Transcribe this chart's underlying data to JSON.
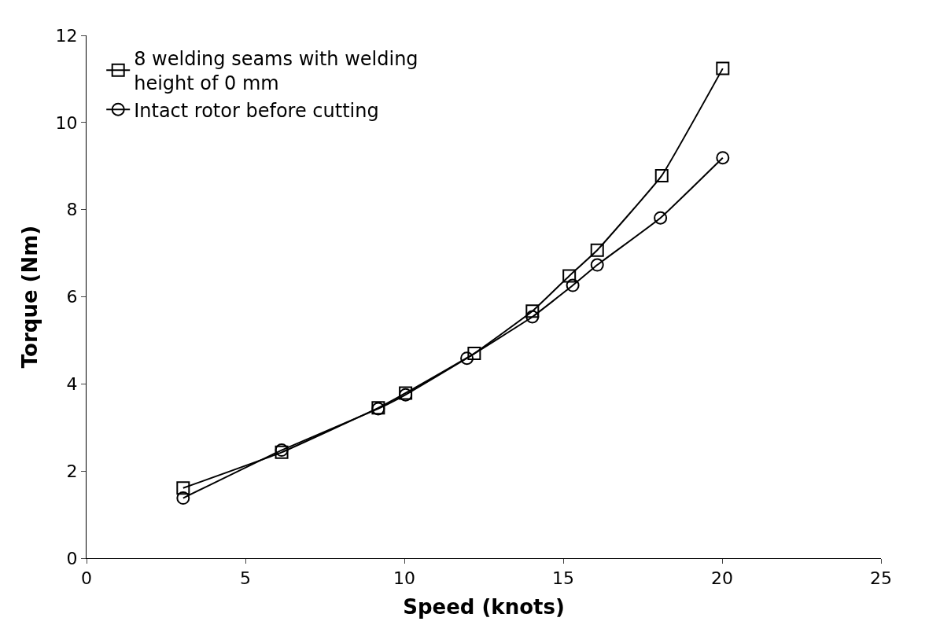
{
  "chart_data": {
    "type": "line",
    "xlabel": "Speed (knots)",
    "ylabel": "Torque (Nm)",
    "xlim": [
      0,
      25
    ],
    "xticks": [
      0,
      5,
      10,
      15,
      20,
      25
    ],
    "ylim": [
      0,
      12
    ],
    "yticks": [
      0,
      2,
      4,
      6,
      8,
      10,
      12
    ],
    "legend": "top left",
    "line_style": "solid",
    "series": [
      {
        "name": "8 welding seams with welding height of 0 mm",
        "color": "#000000",
        "marker": "square",
        "x": [
          3.04,
          6.14,
          9.18,
          10.04,
          12.2,
          14.03,
          15.19,
          16.07,
          18.1,
          20.02
        ],
        "values": [
          1.61,
          2.43,
          3.45,
          3.79,
          4.7,
          5.67,
          6.48,
          7.07,
          8.78,
          11.24
        ]
      },
      {
        "name": "Intact rotor before cutting",
        "color": "#000000",
        "marker": "circle",
        "x": [
          3.04,
          6.14,
          9.18,
          10.04,
          11.97,
          14.03,
          15.3,
          16.07,
          18.06,
          20.02
        ],
        "values": [
          1.38,
          2.48,
          3.43,
          3.75,
          4.59,
          5.54,
          6.26,
          6.73,
          7.81,
          9.19
        ]
      }
    ]
  }
}
